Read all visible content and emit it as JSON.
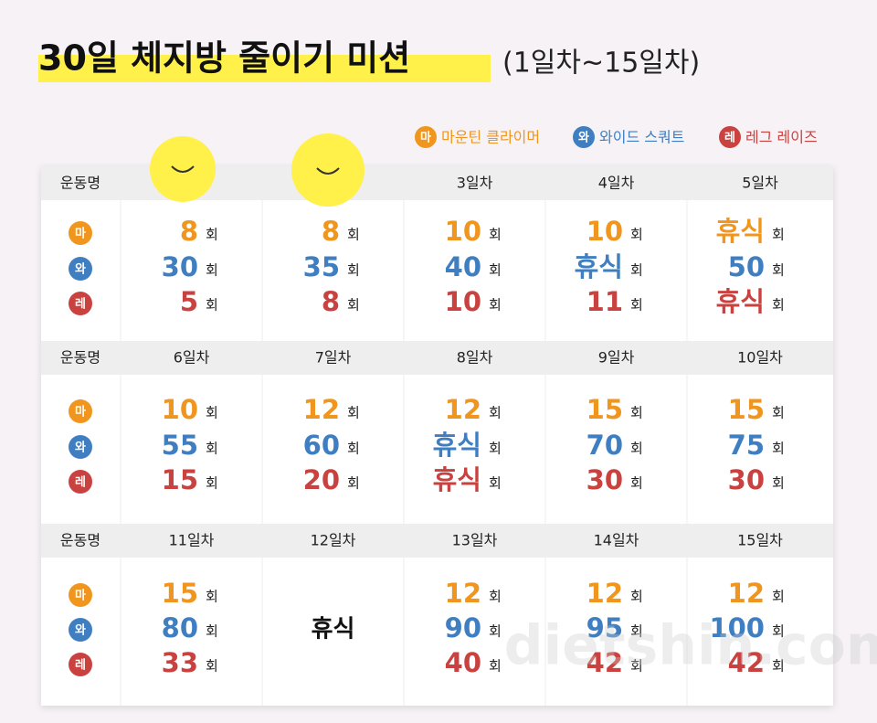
{
  "header": {
    "title": "30일 체지방 줄이기 미션",
    "subtitle": "(1일차~15일차)"
  },
  "legend": [
    {
      "badge": "마",
      "label": "마운틴 클라이머",
      "color": "#f0961e"
    },
    {
      "badge": "와",
      "label": "와이드 스쿼트",
      "color": "#3f7fc1"
    },
    {
      "badge": "레",
      "label": "레그 레이즈",
      "color": "#c9423f"
    }
  ],
  "unit": "회",
  "rest": "휴식",
  "table": {
    "blocks": [
      {
        "header": "운동명",
        "days": [
          {
            "label": null,
            "values": [
              8,
              30,
              5
            ]
          },
          {
            "label": null,
            "values": [
              8,
              35,
              8
            ]
          },
          {
            "label": "3일차",
            "values": [
              10,
              40,
              10
            ]
          },
          {
            "label": "4일차",
            "values": [
              10,
              "휴식",
              11
            ]
          },
          {
            "label": "5일차",
            "values": [
              "휴식",
              50,
              "휴식"
            ]
          }
        ]
      },
      {
        "header": "운동명",
        "days": [
          {
            "label": "6일차",
            "values": [
              10,
              55,
              15
            ]
          },
          {
            "label": "7일차",
            "values": [
              12,
              60,
              20
            ]
          },
          {
            "label": "8일차",
            "values": [
              12,
              "휴식",
              "휴식"
            ]
          },
          {
            "label": "9일차",
            "values": [
              15,
              70,
              30
            ]
          },
          {
            "label": "10일차",
            "values": [
              15,
              75,
              30
            ]
          }
        ]
      },
      {
        "header": "운동명",
        "days": [
          {
            "label": "11일차",
            "values": [
              15,
              80,
              33
            ]
          },
          {
            "label": "12일차",
            "values": null
          },
          {
            "label": "13일차",
            "values": [
              12,
              90,
              40
            ]
          },
          {
            "label": "14일차",
            "values": [
              12,
              95,
              42
            ]
          },
          {
            "label": "15일차",
            "values": [
              12,
              100,
              42
            ]
          }
        ]
      }
    ]
  },
  "watermark": "dietshin.com"
}
